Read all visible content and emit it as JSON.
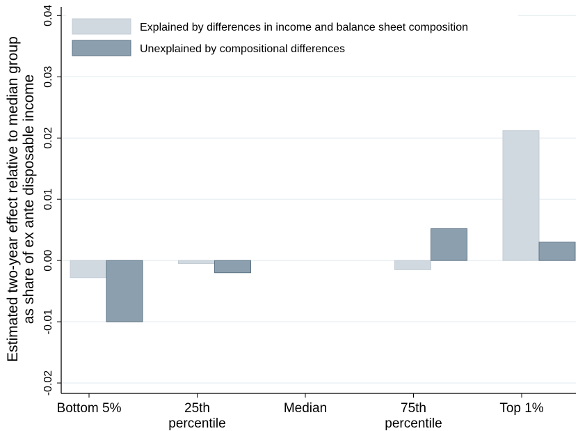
{
  "chart_data": {
    "type": "bar",
    "y_label": [
      "Estimated two-year effect relative to median group",
      "as share of ex ante disposable income"
    ],
    "categories": [
      "Bottom 5%",
      "25th\npercentile",
      "Median",
      "75th\npercentile",
      "Top 1%"
    ],
    "series": [
      {
        "name": "Explained by differences in income and balance sheet composition",
        "color": "#d1d9e0",
        "values": [
          -0.0028,
          -0.0005,
          0,
          -0.0015,
          0.0212
        ]
      },
      {
        "name": "Unexplained by compositional differences",
        "color": "#8b9fae",
        "values": [
          -0.01,
          -0.002,
          0,
          0.0052,
          0.003
        ]
      }
    ],
    "ylim": [
      -0.0217,
      0.0414
    ],
    "yticks": [
      -0.02,
      -0.01,
      {
        "value": 0,
        "label": "0.00"
      },
      0.01,
      0.02,
      0.03,
      0.04
    ],
    "grid": true,
    "legend": "top"
  }
}
